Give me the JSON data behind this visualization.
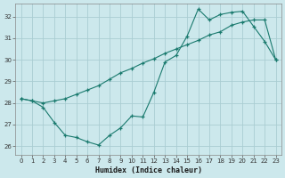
{
  "background_color": "#cce8ec",
  "grid_color": "#aacdd2",
  "line_color": "#1a7a6e",
  "xlabel": "Humidex (Indice chaleur)",
  "xlim_min": -0.5,
  "xlim_max": 23.5,
  "ylim_min": 25.6,
  "ylim_max": 32.6,
  "yticks": [
    26,
    27,
    28,
    29,
    30,
    31,
    32
  ],
  "xticks": [
    0,
    1,
    2,
    3,
    4,
    5,
    6,
    7,
    8,
    9,
    10,
    11,
    12,
    13,
    14,
    15,
    16,
    17,
    18,
    19,
    20,
    21,
    22,
    23
  ],
  "series1_x": [
    0,
    1,
    2,
    3,
    4,
    5,
    6,
    7,
    8,
    9,
    10,
    11,
    12,
    13,
    14,
    15,
    16,
    17,
    18,
    19,
    20,
    21,
    22,
    23
  ],
  "series1_y": [
    28.2,
    28.1,
    28.0,
    28.1,
    28.2,
    28.4,
    28.6,
    28.8,
    29.1,
    29.4,
    29.6,
    29.85,
    30.05,
    30.3,
    30.5,
    30.7,
    30.9,
    31.15,
    31.3,
    31.6,
    31.75,
    31.85,
    31.85,
    30.0
  ],
  "series2_x": [
    0,
    1,
    2,
    3,
    4,
    5,
    6,
    7,
    8,
    9,
    10,
    11,
    12,
    13,
    14,
    15,
    16,
    17,
    18,
    19,
    20,
    21,
    22,
    23
  ],
  "series2_y": [
    28.2,
    28.1,
    27.8,
    27.1,
    26.5,
    26.4,
    26.2,
    26.05,
    26.5,
    26.85,
    27.4,
    27.35,
    28.5,
    29.9,
    30.2,
    31.1,
    32.35,
    31.85,
    32.1,
    32.2,
    32.25,
    31.55,
    30.85,
    30.0
  ]
}
